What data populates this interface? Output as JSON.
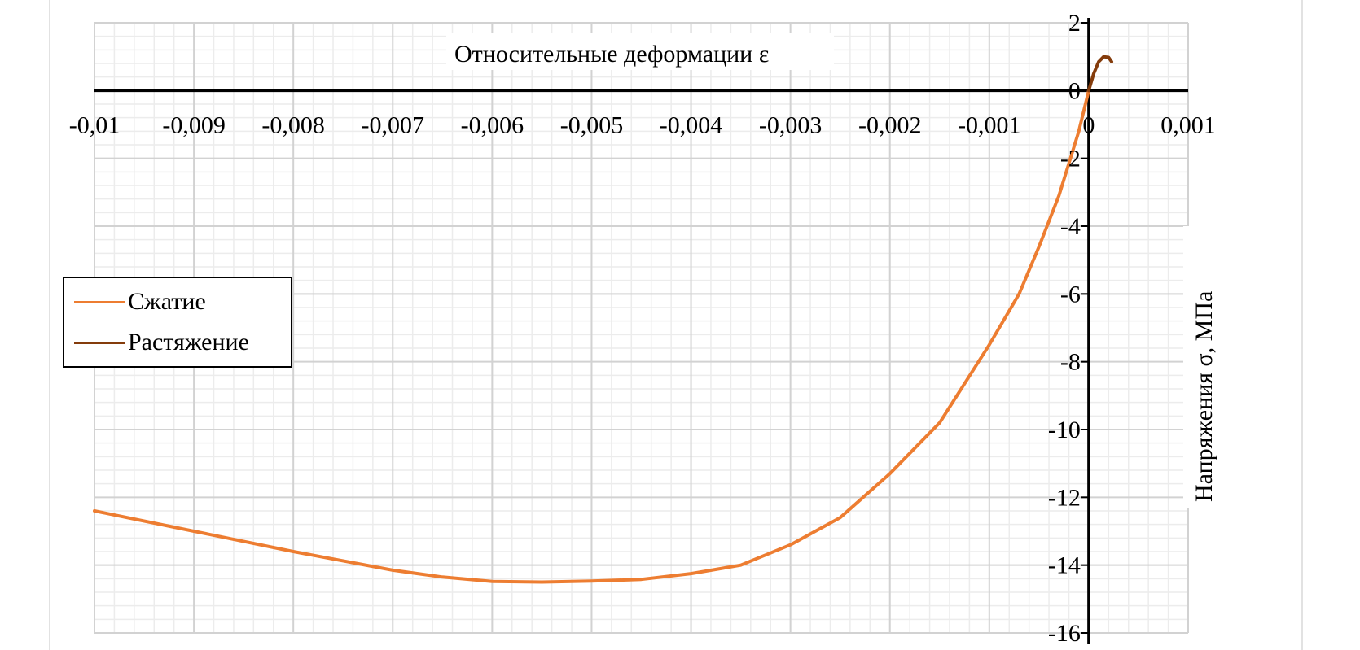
{
  "chart_data": {
    "type": "line",
    "xlabel": "Относительные деформации ε",
    "ylabel": "Напряжения σ, МПа",
    "xlim": [
      -0.01,
      0.001
    ],
    "ylim": [
      -16,
      2
    ],
    "x_ticks": [
      "-0,01",
      "-0,009",
      "-0,008",
      "-0,007",
      "-0,006",
      "-0,005",
      "-0,004",
      "-0,003",
      "-0,002",
      "-0,001",
      "0",
      "0,001"
    ],
    "y_ticks": [
      "2",
      "0",
      "-2",
      "-4",
      "-6",
      "-8",
      "-10",
      "-12",
      "-14",
      "-16"
    ],
    "grid": true,
    "legend_position": "left",
    "series": [
      {
        "name": "Сжатие",
        "color": "#ED7D31",
        "x": [
          -0.01,
          -0.009,
          -0.008,
          -0.007,
          -0.0065,
          -0.006,
          -0.0055,
          -0.005,
          -0.0045,
          -0.004,
          -0.0035,
          -0.003,
          -0.0025,
          -0.002,
          -0.0015,
          -0.001,
          -0.0007,
          -0.0005,
          -0.0003,
          -0.0001,
          0
        ],
        "y": [
          -12.4,
          -13.0,
          -13.6,
          -14.15,
          -14.35,
          -14.48,
          -14.5,
          -14.47,
          -14.42,
          -14.25,
          -14.0,
          -13.4,
          -12.6,
          -11.3,
          -9.8,
          -7.5,
          -6.0,
          -4.6,
          -3.1,
          -1.2,
          0
        ]
      },
      {
        "name": "Растяжение",
        "color": "#843C0C",
        "x": [
          0,
          5e-05,
          0.0001,
          0.00015,
          0.0002,
          0.00023
        ],
        "y": [
          0,
          0.5,
          0.85,
          1.0,
          0.98,
          0.85
        ]
      }
    ]
  }
}
